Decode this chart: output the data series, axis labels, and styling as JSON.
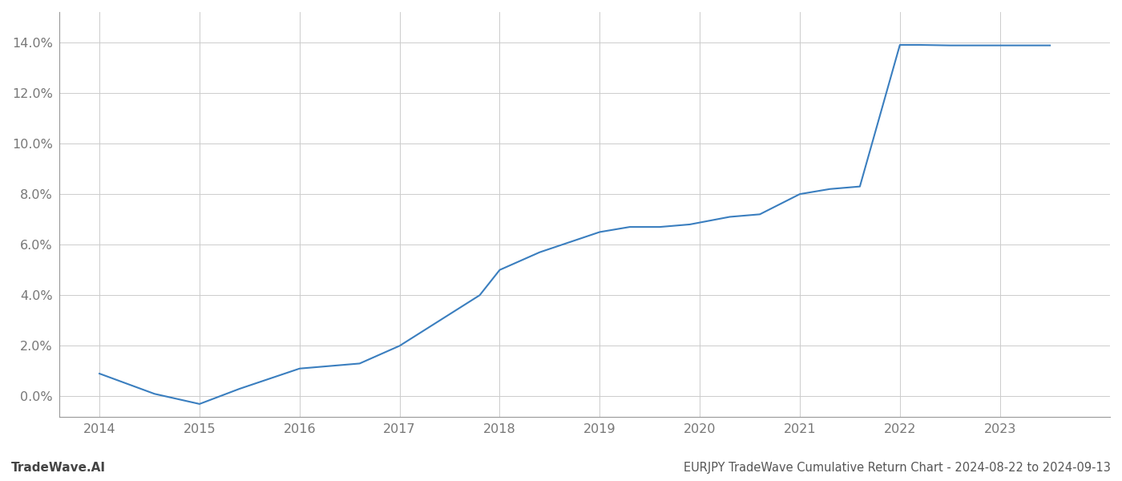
{
  "x_years": [
    2014.0,
    2014.55,
    2015.0,
    2015.4,
    2016.0,
    2016.3,
    2016.6,
    2017.0,
    2017.4,
    2017.8,
    2018.0,
    2018.4,
    2019.0,
    2019.3,
    2019.6,
    2019.9,
    2020.3,
    2020.6,
    2021.0,
    2021.3,
    2021.6,
    2022.0,
    2022.2,
    2022.5,
    2023.0,
    2023.5
  ],
  "y_values": [
    0.009,
    0.001,
    -0.003,
    0.003,
    0.011,
    0.012,
    0.013,
    0.02,
    0.03,
    0.04,
    0.05,
    0.057,
    0.065,
    0.067,
    0.067,
    0.068,
    0.071,
    0.072,
    0.08,
    0.082,
    0.083,
    0.139,
    0.139,
    0.1388,
    0.1388,
    0.1388
  ],
  "line_color": "#3a7ebf",
  "line_width": 1.5,
  "title": "EURJPY TradeWave Cumulative Return Chart - 2024-08-22 to 2024-09-13",
  "title_fontsize": 10.5,
  "title_color": "#555555",
  "watermark": "TradeWave.AI",
  "watermark_fontsize": 11,
  "watermark_color": "#444444",
  "x_tick_labels": [
    "2014",
    "2015",
    "2016",
    "2017",
    "2018",
    "2019",
    "2020",
    "2021",
    "2022",
    "2023"
  ],
  "x_tick_positions": [
    2014,
    2015,
    2016,
    2017,
    2018,
    2019,
    2020,
    2021,
    2022,
    2023
  ],
  "y_tick_labels": [
    "0.0%",
    "2.0%",
    "4.0%",
    "6.0%",
    "8.0%",
    "10.0%",
    "12.0%",
    "14.0%"
  ],
  "y_tick_values": [
    0.0,
    0.02,
    0.04,
    0.06,
    0.08,
    0.1,
    0.12,
    0.14
  ],
  "ylim": [
    -0.008,
    0.152
  ],
  "xlim": [
    2013.6,
    2024.1
  ],
  "grid_color": "#cccccc",
  "bg_color": "#ffffff",
  "left_spine_color": "#999999",
  "bottom_spine_color": "#999999",
  "tick_label_color": "#777777",
  "tick_label_fontsize": 11.5
}
